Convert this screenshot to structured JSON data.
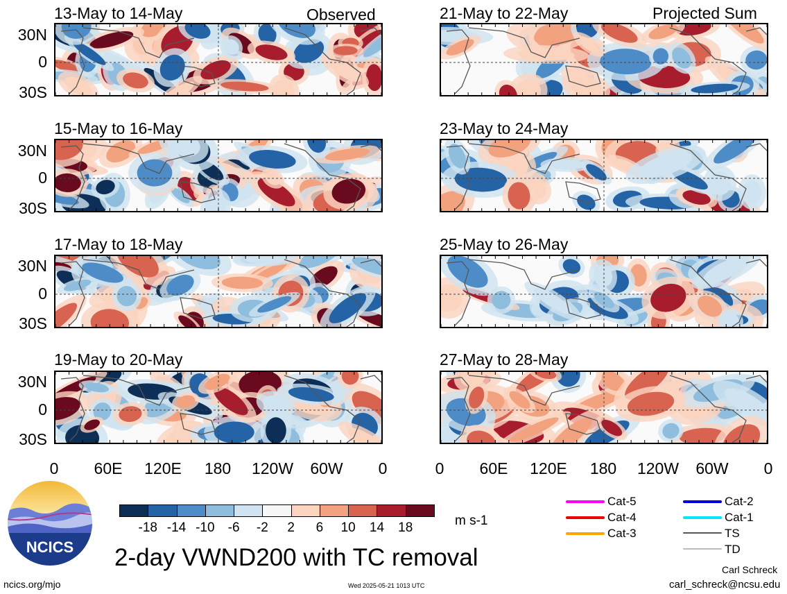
{
  "panels_left": [
    {
      "title": "13-May to 14-May",
      "corner": "Observed"
    },
    {
      "title": "15-May to 16-May",
      "corner": ""
    },
    {
      "title": "17-May to 18-May",
      "corner": ""
    },
    {
      "title": "19-May to 20-May",
      "corner": ""
    }
  ],
  "panels_right": [
    {
      "title": "21-May to 22-May",
      "corner": "Projected Sum"
    },
    {
      "title": "23-May to 24-May",
      "corner": ""
    },
    {
      "title": "25-May to 26-May",
      "corner": ""
    },
    {
      "title": "27-May to 28-May",
      "corner": ""
    }
  ],
  "lat_labels": [
    "30N",
    "0",
    "30S"
  ],
  "lon_labels": [
    "0",
    "60E",
    "120E",
    "180",
    "120W",
    "60W",
    "0"
  ],
  "colorbar": {
    "labels": [
      "-18",
      "-14",
      "-10",
      "-6",
      "-2",
      "2",
      "6",
      "10",
      "14",
      "18"
    ],
    "colors": [
      "#0d2f57",
      "#2463a6",
      "#4d8cc7",
      "#8fbddd",
      "#cfe3f0",
      "#f7f7f7",
      "#fbd4c0",
      "#f2a27e",
      "#d86350",
      "#a81d2e",
      "#6a0a1f"
    ],
    "unit": "m s-1"
  },
  "logo": {
    "text": "NCICS"
  },
  "main_title": "2-day VWND200 with TC removal",
  "footer": {
    "left": "ncics.org/mjo",
    "center": "Wed 2025-05-21 1013 UTC",
    "author": "Carl Schreck",
    "email": "carl_schreck@ncsu.edu"
  },
  "tc_legend": [
    {
      "label": "Cat-5",
      "color": "#ff00ff"
    },
    {
      "label": "Cat-4",
      "color": "#ee0000"
    },
    {
      "label": "Cat-3",
      "color": "#ffa500"
    },
    {
      "label": "Cat-2",
      "color": "#0000dd"
    },
    {
      "label": "Cat-1",
      "color": "#00e5ff"
    },
    {
      "label": "TS",
      "color": "#555555"
    },
    {
      "label": "TD",
      "color": "#bbbbbb"
    }
  ]
}
